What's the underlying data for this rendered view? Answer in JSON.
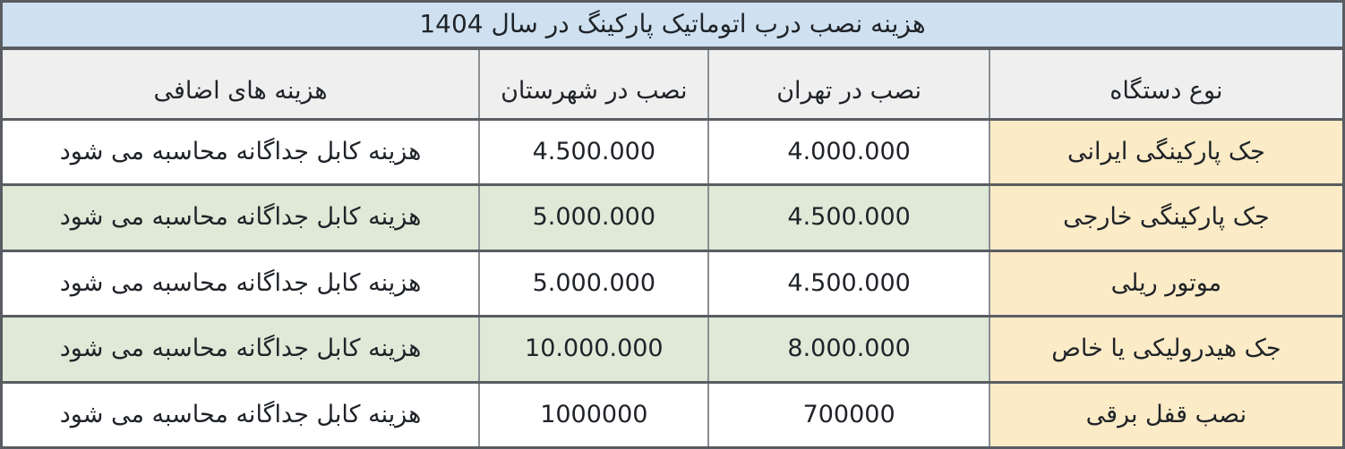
{
  "colors": {
    "title_bg": "#cfe1f1",
    "header_bg": "#efefef",
    "device_bg": "#fbebc6",
    "alt_row_bg": "#dee9d7",
    "row_bg": "#ffffff",
    "border_dark": "#595d62",
    "border_light": "#8a8e92",
    "text": "#1f2328"
  },
  "chart_data": {
    "type": "table",
    "title": "هزینه نصب درب اتوماتیک پارکینگ در سال 1404",
    "columns": {
      "device": "نوع دستگاه",
      "tehran": "نصب در تهران",
      "shahrestan": "نصب در شهرستان",
      "extra": "هزینه های اضافی"
    },
    "rows": [
      {
        "device": "جک پارکینگی ایرانی",
        "tehran": "4.000.000",
        "shahrestan": "4.500.000",
        "extra": "هزینه کابل جداگانه محاسبه می شود"
      },
      {
        "device": "جک پارکینگی خارجی",
        "tehran": "4.500.000",
        "shahrestan": "5.000.000",
        "extra": "هزینه کابل جداگانه محاسبه می شود"
      },
      {
        "device": "موتور ریلی",
        "tehran": "4.500.000",
        "shahrestan": "5.000.000",
        "extra": "هزینه کابل جداگانه محاسبه می شود"
      },
      {
        "device": "جک هیدرولیکی یا خاص",
        "tehran": "8.000.000",
        "shahrestan": "10.000.000",
        "extra": "هزینه کابل جداگانه محاسبه می شود"
      },
      {
        "device": "نصب قفل برقی",
        "tehran": "700000",
        "shahrestan": "1000000",
        "extra": "هزینه کابل جداگانه محاسبه می شود"
      }
    ]
  }
}
